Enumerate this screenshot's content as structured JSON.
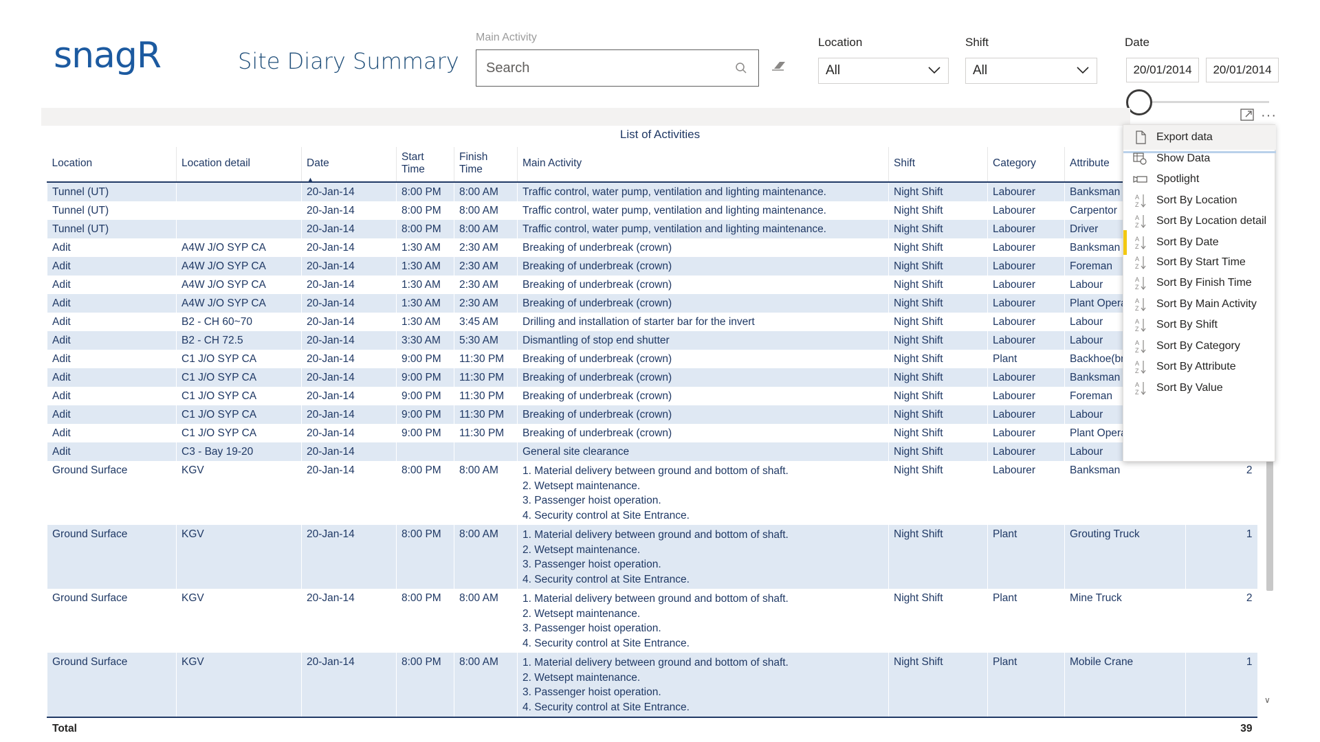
{
  "header": {
    "logo_text": "snagR",
    "title": "Site Diary Summary"
  },
  "filters": {
    "main_activity_label": "Main Activity",
    "search_placeholder": "Search",
    "location_label": "Location",
    "location_value": "All",
    "shift_label": "Shift",
    "shift_value": "All",
    "date_label": "Date",
    "date_from": "20/01/2014",
    "date_to": "20/01/2014"
  },
  "table": {
    "title": "List of Activities",
    "columns": [
      "Location",
      "Location detail",
      "Date",
      "Start Time",
      "Finish Time",
      "Main Activity",
      "Shift",
      "Category",
      "Attribute",
      ""
    ],
    "sorted_column": "Date",
    "rows": [
      [
        "Tunnel (UT)",
        "",
        "20-Jan-14",
        "8:00 PM",
        "8:00 AM",
        "Traffic control, water pump, ventilation and lighting maintenance.",
        "Night Shift",
        "Labourer",
        "Banksman",
        ""
      ],
      [
        "Tunnel (UT)",
        "",
        "20-Jan-14",
        "8:00 PM",
        "8:00 AM",
        "Traffic control, water pump, ventilation and lighting maintenance.",
        "Night Shift",
        "Labourer",
        "Carpentor",
        ""
      ],
      [
        "Tunnel (UT)",
        "",
        "20-Jan-14",
        "8:00 PM",
        "8:00 AM",
        "Traffic control, water pump, ventilation and lighting maintenance.",
        "Night Shift",
        "Labourer",
        "Driver",
        ""
      ],
      [
        "Adit",
        "A4W J/O SYP CA",
        "20-Jan-14",
        "1:30 AM",
        "2:30 AM",
        "Breaking of underbreak (crown)",
        "Night Shift",
        "Labourer",
        "Banksman",
        ""
      ],
      [
        "Adit",
        "A4W J/O SYP CA",
        "20-Jan-14",
        "1:30 AM",
        "2:30 AM",
        "Breaking of underbreak (crown)",
        "Night Shift",
        "Labourer",
        "Foreman",
        ""
      ],
      [
        "Adit",
        "A4W J/O SYP CA",
        "20-Jan-14",
        "1:30 AM",
        "2:30 AM",
        "Breaking of underbreak (crown)",
        "Night Shift",
        "Labourer",
        "Labour",
        ""
      ],
      [
        "Adit",
        "A4W J/O SYP CA",
        "20-Jan-14",
        "1:30 AM",
        "2:30 AM",
        "Breaking of underbreak (crown)",
        "Night Shift",
        "Labourer",
        "Plant Opera",
        ""
      ],
      [
        "Adit",
        "B2 - CH 60~70",
        "20-Jan-14",
        "1:30 AM",
        "3:45 AM",
        "Drilling and installation of starter bar for the invert",
        "Night Shift",
        "Labourer",
        "Labour",
        ""
      ],
      [
        "Adit",
        "B2 - CH 72.5",
        "20-Jan-14",
        "3:30 AM",
        "5:30 AM",
        "Dismantling of stop end shutter",
        "Night Shift",
        "Labourer",
        "Labour",
        ""
      ],
      [
        "Adit",
        "C1 J/O SYP CA",
        "20-Jan-14",
        "9:00 PM",
        "11:30 PM",
        "Breaking of underbreak (crown)",
        "Night Shift",
        "Plant",
        "Backhoe(br",
        ""
      ],
      [
        "Adit",
        "C1 J/O SYP CA",
        "20-Jan-14",
        "9:00 PM",
        "11:30 PM",
        "Breaking of underbreak (crown)",
        "Night Shift",
        "Labourer",
        "Banksman",
        ""
      ],
      [
        "Adit",
        "C1 J/O SYP CA",
        "20-Jan-14",
        "9:00 PM",
        "11:30 PM",
        "Breaking of underbreak (crown)",
        "Night Shift",
        "Labourer",
        "Foreman",
        ""
      ],
      [
        "Adit",
        "C1 J/O SYP CA",
        "20-Jan-14",
        "9:00 PM",
        "11:30 PM",
        "Breaking of underbreak (crown)",
        "Night Shift",
        "Labourer",
        "Labour",
        ""
      ],
      [
        "Adit",
        "C1 J/O SYP CA",
        "20-Jan-14",
        "9:00 PM",
        "11:30 PM",
        "Breaking of underbreak (crown)",
        "Night Shift",
        "Labourer",
        "Plant Opera",
        ""
      ],
      [
        "Adit",
        "C3 - Bay 19-20",
        "20-Jan-14",
        "",
        "",
        "General site clearance",
        "Night Shift",
        "Labourer",
        "Labour",
        ""
      ]
    ],
    "tall_rows": [
      {
        "cells": [
          "Ground Surface",
          "KGV",
          "20-Jan-14",
          "8:00 PM",
          "8:00 AM",
          "",
          "Night Shift",
          "Labourer",
          "Banksman",
          "2"
        ]
      },
      {
        "cells": [
          "Ground Surface",
          "KGV",
          "20-Jan-14",
          "8:00 PM",
          "8:00 AM",
          "",
          "Night Shift",
          "Plant",
          "Grouting Truck",
          "1"
        ]
      },
      {
        "cells": [
          "Ground Surface",
          "KGV",
          "20-Jan-14",
          "8:00 PM",
          "8:00 AM",
          "",
          "Night Shift",
          "Plant",
          "Mine Truck",
          "2"
        ]
      },
      {
        "cells": [
          "Ground Surface",
          "KGV",
          "20-Jan-14",
          "8:00 PM",
          "8:00 AM",
          "",
          "Night Shift",
          "Plant",
          "Mobile Crane",
          "1"
        ]
      }
    ],
    "ground_activity_lines": [
      "1. Material delivery between ground and bottom of shaft.",
      "2. Wetsept maintenance.",
      "3. Passenger hoist operation.",
      "4. Security control at Site Entrance."
    ],
    "total_label": "Total",
    "total_value": "39"
  },
  "context_menu": {
    "items": [
      {
        "label": "Export data",
        "icon": "page-icon"
      },
      {
        "label": "Show Data",
        "icon": "table-view-icon"
      },
      {
        "label": "Spotlight",
        "icon": "spotlight-icon"
      },
      {
        "label": "Sort By Location",
        "icon": "sort-icon"
      },
      {
        "label": "Sort By Location detail",
        "icon": "sort-icon"
      },
      {
        "label": "Sort By Date",
        "icon": "sort-icon"
      },
      {
        "label": "Sort By Start Time",
        "icon": "sort-icon"
      },
      {
        "label": "Sort By Finish Time",
        "icon": "sort-icon"
      },
      {
        "label": "Sort By Main Activity",
        "icon": "sort-icon"
      },
      {
        "label": "Sort By Shift",
        "icon": "sort-icon"
      },
      {
        "label": "Sort By Category",
        "icon": "sort-icon"
      },
      {
        "label": "Sort By Attribute",
        "icon": "sort-icon"
      },
      {
        "label": "Sort By Value",
        "icon": "sort-icon"
      }
    ],
    "selected": "Sort By Date"
  },
  "colors": {
    "brand": "#1c5aa0",
    "text": "#1f3864",
    "row_band": "#dfe8f3",
    "selected_marker": "#f2c811"
  }
}
